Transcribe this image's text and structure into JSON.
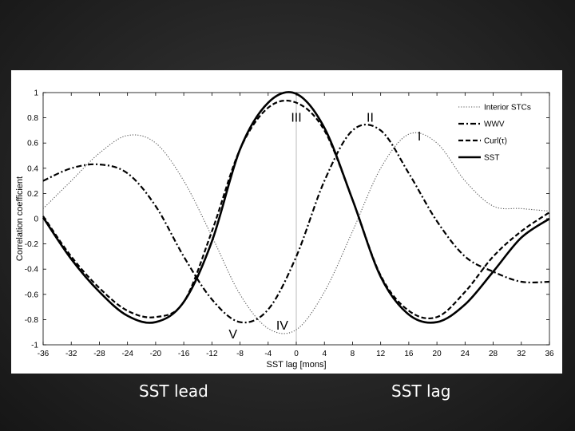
{
  "captions": {
    "lead": "SST lead",
    "lag": "SST lag"
  },
  "chart_data": {
    "type": "line",
    "title": "",
    "xlabel": "SST lag [mons]",
    "ylabel": "Correlation coefficient",
    "xlim": [
      -36,
      36
    ],
    "ylim": [
      -1,
      1
    ],
    "x_ticks": [
      -36,
      -32,
      -28,
      -24,
      -20,
      -16,
      -12,
      -8,
      -4,
      0,
      4,
      8,
      12,
      16,
      20,
      24,
      28,
      32,
      36
    ],
    "y_ticks": [
      -1,
      -0.8,
      -0.6,
      -0.4,
      -0.2,
      0,
      0.2,
      0.4,
      0.6,
      0.8,
      1
    ],
    "y_tick_labels": [
      "-1",
      "-0.8",
      "-0.6",
      "-0.4",
      "-0.2",
      "0",
      "0.2",
      "0.4",
      "0.6",
      "0.8",
      "1"
    ],
    "grid": false,
    "legend_position": "top-right",
    "vertical_reference_line_x": 0,
    "x": [
      -36,
      -32,
      -28,
      -24,
      -20,
      -16,
      -12,
      -8,
      -4,
      0,
      4,
      8,
      12,
      16,
      20,
      24,
      28,
      32,
      36
    ],
    "series": [
      {
        "name": "Interior STCs",
        "style": "dotted",
        "values": [
          0.08,
          0.3,
          0.52,
          0.66,
          0.6,
          0.3,
          -0.14,
          -0.6,
          -0.87,
          -0.88,
          -0.58,
          -0.1,
          0.4,
          0.67,
          0.6,
          0.3,
          0.1,
          0.08,
          0.06
        ]
      },
      {
        "name": "WWV",
        "style": "dash-dot",
        "values": [
          0.3,
          0.4,
          0.43,
          0.36,
          0.1,
          -0.3,
          -0.64,
          -0.82,
          -0.72,
          -0.3,
          0.3,
          0.7,
          0.7,
          0.36,
          -0.02,
          -0.3,
          -0.42,
          -0.5,
          -0.5
        ]
      },
      {
        "name": "Curl(τ)",
        "style": "dashed",
        "values": [
          0.02,
          -0.3,
          -0.55,
          -0.73,
          -0.78,
          -0.66,
          -0.1,
          0.55,
          0.88,
          0.92,
          0.7,
          0.15,
          -0.45,
          -0.73,
          -0.78,
          -0.58,
          -0.3,
          -0.1,
          0.05
        ]
      },
      {
        "name": "SST",
        "style": "solid",
        "values": [
          0.01,
          -0.32,
          -0.58,
          -0.77,
          -0.82,
          -0.66,
          -0.18,
          0.55,
          0.92,
          0.99,
          0.72,
          0.15,
          -0.46,
          -0.76,
          -0.82,
          -0.68,
          -0.42,
          -0.15,
          0.0
        ]
      }
    ],
    "annotations": [
      {
        "label": "I",
        "x": 17.5,
        "y": 0.62
      },
      {
        "label": "II",
        "x": 10.5,
        "y": 0.77
      },
      {
        "label": "III",
        "x": 0,
        "y": 0.77
      },
      {
        "label": "IV",
        "x": -2,
        "y": -0.88
      },
      {
        "label": "V",
        "x": -9,
        "y": -0.95
      }
    ]
  }
}
